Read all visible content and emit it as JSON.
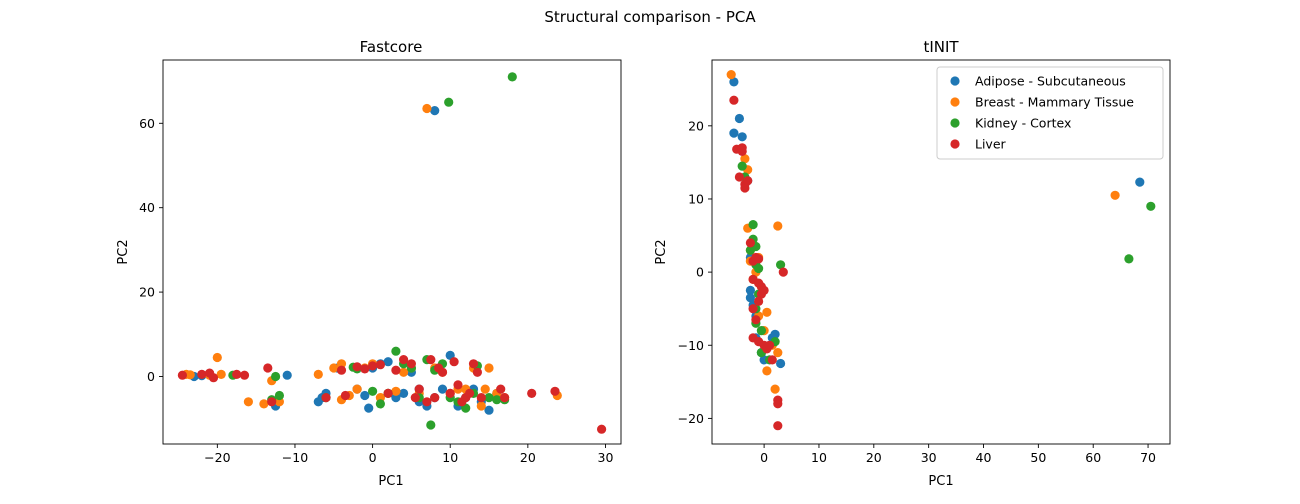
{
  "figure": {
    "suptitle": "Structural comparison - PCA"
  },
  "colors": {
    "Adipose - Subcutaneous": "#1f77b4",
    "Breast - Mammary Tissue": "#ff7f0e",
    "Kidney - Cortex": "#2ca02c",
    "Liver": "#d62728"
  },
  "chart_data": [
    {
      "type": "scatter",
      "title": "Fastcore",
      "xlabel": "PC1",
      "ylabel": "PC2",
      "xlim": [
        -27,
        32
      ],
      "ylim": [
        -16,
        75
      ],
      "xticks": [
        -20,
        -10,
        0,
        10,
        20,
        30
      ],
      "yticks": [
        0,
        20,
        40,
        60
      ],
      "legend": null,
      "series": [
        {
          "name": "Adipose - Subcutaneous",
          "points": [
            [
              -23,
              0
            ],
            [
              -22,
              0.2
            ],
            [
              -21,
              0.5
            ],
            [
              -12.5,
              -7
            ],
            [
              -11,
              0.3
            ],
            [
              -7,
              -6
            ],
            [
              -6,
              -4
            ],
            [
              -6.5,
              -5
            ],
            [
              -4.5,
              2
            ],
            [
              -2,
              -3
            ],
            [
              -1,
              -4.5
            ],
            [
              -0.5,
              -7.5
            ],
            [
              0,
              2
            ],
            [
              1,
              3
            ],
            [
              2,
              3.5
            ],
            [
              3,
              -5
            ],
            [
              4,
              -4
            ],
            [
              5,
              1
            ],
            [
              6,
              -3
            ],
            [
              6,
              -6
            ],
            [
              7,
              -7
            ],
            [
              8,
              -5
            ],
            [
              8,
              63
            ],
            [
              9,
              -3
            ],
            [
              10,
              5
            ],
            [
              11,
              -7
            ],
            [
              12,
              -5
            ],
            [
              13,
              -3
            ],
            [
              14,
              -6
            ],
            [
              15,
              -8
            ],
            [
              16,
              -4
            ]
          ]
        },
        {
          "name": "Breast - Mammary Tissue",
          "points": [
            [
              -24,
              0.5
            ],
            [
              -23.5,
              0.4
            ],
            [
              -21,
              0.3
            ],
            [
              -20,
              4.5
            ],
            [
              -19.5,
              0.5
            ],
            [
              -16,
              -6
            ],
            [
              -14,
              -6.5
            ],
            [
              -13,
              -1
            ],
            [
              -12,
              -6
            ],
            [
              -7,
              0.5
            ],
            [
              -5,
              2
            ],
            [
              -4,
              3
            ],
            [
              -4,
              -5.5
            ],
            [
              -3,
              -4.5
            ],
            [
              -2,
              -3
            ],
            [
              -1,
              2
            ],
            [
              0,
              3
            ],
            [
              1,
              -5
            ],
            [
              2,
              -4
            ],
            [
              3,
              -3.5
            ],
            [
              4,
              1
            ],
            [
              5,
              2
            ],
            [
              6,
              -4
            ],
            [
              7,
              63.5
            ],
            [
              8,
              2
            ],
            [
              9,
              1
            ],
            [
              10,
              -4
            ],
            [
              11,
              -3
            ],
            [
              12,
              -3
            ],
            [
              13,
              2
            ],
            [
              14,
              -7
            ],
            [
              14.5,
              -3
            ],
            [
              15,
              2
            ],
            [
              16,
              -4
            ],
            [
              17,
              -5
            ],
            [
              23.8,
              -4.5
            ]
          ]
        },
        {
          "name": "Kidney - Cortex",
          "points": [
            [
              -18,
              0.3
            ],
            [
              -13,
              -5.5
            ],
            [
              -12.5,
              0
            ],
            [
              -12,
              -4.5
            ],
            [
              -6,
              -5
            ],
            [
              -2.5,
              2.2
            ],
            [
              -2,
              1.8
            ],
            [
              0,
              -3.5
            ],
            [
              1,
              -6.5
            ],
            [
              2,
              -4
            ],
            [
              3,
              6
            ],
            [
              4,
              3
            ],
            [
              5,
              2
            ],
            [
              6,
              -5
            ],
            [
              7,
              4
            ],
            [
              7.5,
              -11.5
            ],
            [
              8,
              1.5
            ],
            [
              9,
              3
            ],
            [
              9.8,
              65
            ],
            [
              10,
              -5
            ],
            [
              11,
              -6
            ],
            [
              12,
              -7.5
            ],
            [
              13,
              -4
            ],
            [
              13.5,
              2.5
            ],
            [
              15,
              -5
            ],
            [
              16,
              -5.5
            ],
            [
              17,
              -5.5
            ],
            [
              18,
              71
            ]
          ]
        },
        {
          "name": "Liver",
          "points": [
            [
              -24.5,
              0.3
            ],
            [
              -22,
              0.5
            ],
            [
              -21,
              0.8
            ],
            [
              -20.5,
              -0.3
            ],
            [
              -17.5,
              0.5
            ],
            [
              -16.5,
              0.3
            ],
            [
              -13.5,
              2
            ],
            [
              -13,
              -6
            ],
            [
              -6,
              -5
            ],
            [
              -4,
              1.5
            ],
            [
              -3.5,
              -4.5
            ],
            [
              -2,
              2.3
            ],
            [
              -1,
              1.8
            ],
            [
              0,
              2.5
            ],
            [
              1,
              2.8
            ],
            [
              2,
              -4
            ],
            [
              3,
              1.5
            ],
            [
              4,
              4
            ],
            [
              5,
              3
            ],
            [
              5.5,
              -5
            ],
            [
              6,
              -3
            ],
            [
              7,
              -6
            ],
            [
              7.5,
              4
            ],
            [
              8,
              -5
            ],
            [
              8.5,
              2
            ],
            [
              9,
              1
            ],
            [
              10,
              -4
            ],
            [
              10.5,
              3.5
            ],
            [
              11,
              -2
            ],
            [
              11.5,
              -6
            ],
            [
              12,
              -5
            ],
            [
              12.5,
              -4
            ],
            [
              13,
              3
            ],
            [
              13.5,
              1
            ],
            [
              14,
              -5
            ],
            [
              16.5,
              -3
            ],
            [
              17,
              -5
            ],
            [
              20.5,
              -4
            ],
            [
              23.5,
              -3.5
            ],
            [
              29.5,
              -12.5
            ]
          ]
        }
      ]
    },
    {
      "type": "scatter",
      "title": "tINIT",
      "xlabel": "PC1",
      "ylabel": "PC2",
      "xlim": [
        -9.5,
        74
      ],
      "ylim": [
        -23.5,
        29
      ],
      "xticks": [
        0,
        10,
        20,
        30,
        40,
        50,
        60,
        70
      ],
      "yticks": [
        -20,
        -10,
        0,
        10,
        20
      ],
      "legend": "top-right",
      "series": [
        {
          "name": "Adipose - Subcutaneous",
          "points": [
            [
              -5.5,
              26
            ],
            [
              -5.5,
              19
            ],
            [
              -4.5,
              21
            ],
            [
              -4,
              18.5
            ],
            [
              -3,
              12.5
            ],
            [
              -2.5,
              2
            ],
            [
              -2.5,
              -2.5
            ],
            [
              -2.5,
              -3.5
            ],
            [
              -2,
              -4.5
            ],
            [
              -1.5,
              -6
            ],
            [
              -1.5,
              -9
            ],
            [
              -0.5,
              -11
            ],
            [
              0,
              -12
            ],
            [
              1,
              -10
            ],
            [
              1.5,
              -9
            ],
            [
              2,
              -8.5
            ],
            [
              3,
              -12.5
            ],
            [
              68.5,
              12.3
            ]
          ]
        },
        {
          "name": "Breast - Mammary Tissue",
          "points": [
            [
              -6,
              27
            ],
            [
              -3.5,
              15.5
            ],
            [
              -3,
              14
            ],
            [
              -3,
              6
            ],
            [
              -2.5,
              3
            ],
            [
              -2.5,
              1.5
            ],
            [
              -2,
              -1
            ],
            [
              -1.5,
              0
            ],
            [
              -1,
              2
            ],
            [
              -1,
              -6
            ],
            [
              0,
              -8
            ],
            [
              0.5,
              -5.5
            ],
            [
              0.5,
              -13.5
            ],
            [
              1.5,
              -10
            ],
            [
              2,
              -16
            ],
            [
              2.5,
              6.3
            ],
            [
              2.5,
              -11
            ],
            [
              64,
              10.5
            ]
          ]
        },
        {
          "name": "Kidney - Cortex",
          "points": [
            [
              -4,
              14.5
            ],
            [
              -3.5,
              13
            ],
            [
              -2.5,
              3
            ],
            [
              -2,
              6.5
            ],
            [
              -2,
              4.5
            ],
            [
              -1.5,
              3.5
            ],
            [
              -1.5,
              1
            ],
            [
              -1,
              0.5
            ],
            [
              -1,
              -3
            ],
            [
              -1.5,
              -5
            ],
            [
              -1.5,
              -7
            ],
            [
              -0.5,
              -8
            ],
            [
              -0.5,
              -11
            ],
            [
              1,
              -12
            ],
            [
              2,
              -9.5
            ],
            [
              3,
              1
            ],
            [
              66.5,
              1.8
            ],
            [
              70.5,
              9
            ]
          ]
        },
        {
          "name": "Liver",
          "points": [
            [
              -5.5,
              23.5
            ],
            [
              -5,
              16.8
            ],
            [
              -4.5,
              13
            ],
            [
              -4,
              16.5
            ],
            [
              -4,
              17
            ],
            [
              -3.5,
              12
            ],
            [
              -3.5,
              11.5
            ],
            [
              -3,
              12.5
            ],
            [
              -2.5,
              4
            ],
            [
              -2,
              1.5
            ],
            [
              -2,
              -1
            ],
            [
              -1.5,
              2
            ],
            [
              -1,
              1.8
            ],
            [
              -1,
              -1.5
            ],
            [
              -0.5,
              -2
            ],
            [
              -0.5,
              -3
            ],
            [
              0,
              -2.5
            ],
            [
              -1,
              -4
            ],
            [
              -2,
              -5
            ],
            [
              -1.5,
              -6.5
            ],
            [
              -2,
              -9
            ],
            [
              -1,
              -9.5
            ],
            [
              0,
              -10
            ],
            [
              0.5,
              -10.5
            ],
            [
              1,
              -10
            ],
            [
              1.5,
              -12
            ],
            [
              2.5,
              -17.5
            ],
            [
              2.5,
              -18
            ],
            [
              2.5,
              -21
            ],
            [
              3.5,
              0
            ]
          ]
        }
      ]
    }
  ]
}
